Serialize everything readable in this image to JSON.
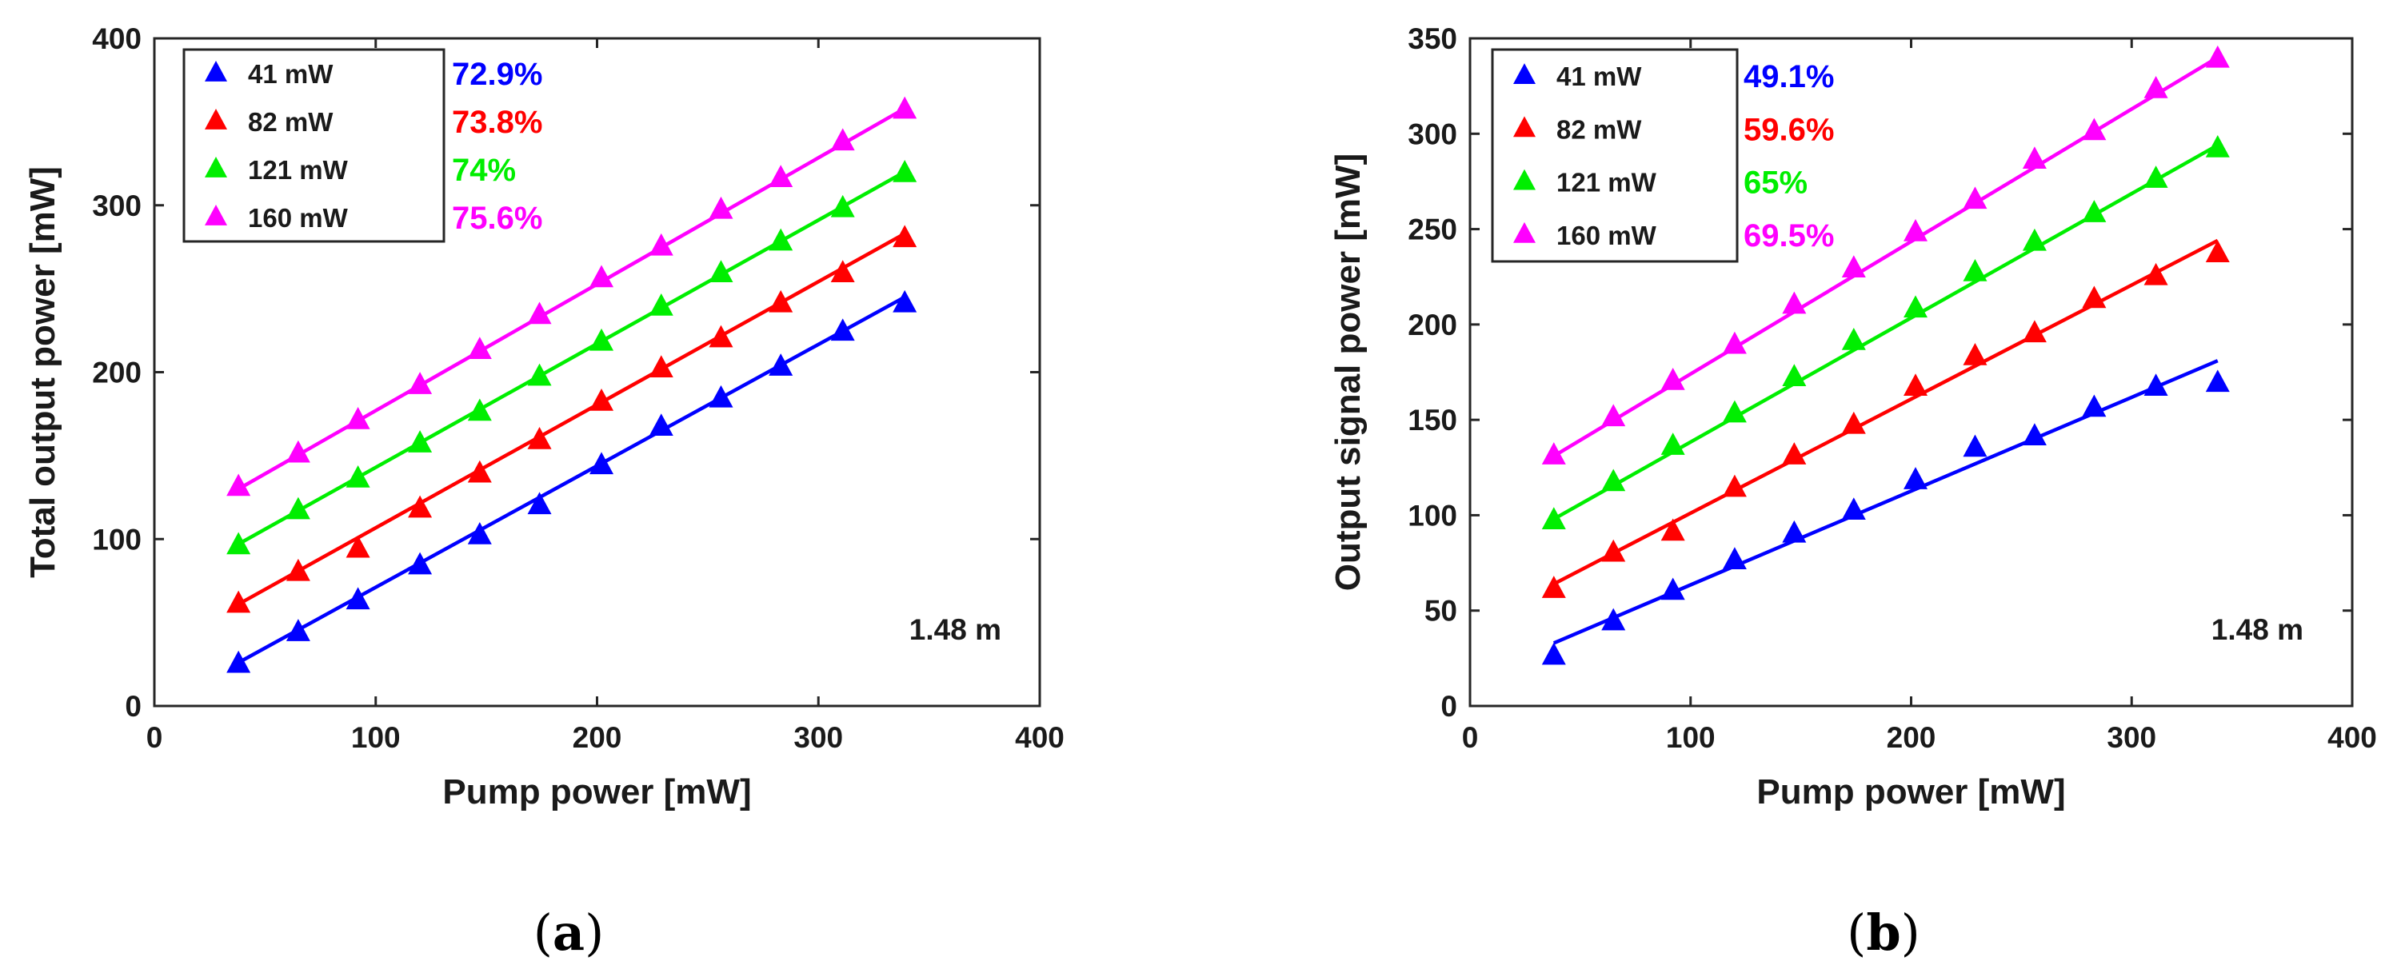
{
  "chart_data": [
    {
      "type": "scatter",
      "panel": "(a)",
      "panel_letter": "a",
      "xlabel": "Pump power [mW]",
      "ylabel": "Total output power [mW]",
      "xlim": [
        0,
        400
      ],
      "ylim": [
        0,
        400
      ],
      "xticks": [
        0,
        100,
        200,
        300,
        400
      ],
      "yticks": [
        0,
        100,
        200,
        300,
        400
      ],
      "annotation": "1.48 m",
      "legend_position": "top-left",
      "series": [
        {
          "name": "41 mW",
          "efficiency": "72.9%",
          "color": "#0000ff",
          "x": [
            38,
            65,
            92,
            120,
            147,
            174,
            202,
            229,
            256,
            283,
            311,
            339
          ],
          "y": [
            26,
            45,
            64,
            85,
            103,
            121,
            145,
            168,
            185,
            204,
            225,
            242
          ],
          "fit": [
            [
              38,
              26
            ],
            [
              339,
              245
            ]
          ]
        },
        {
          "name": "82 mW",
          "efficiency": "73.8%",
          "color": "#ff0000",
          "x": [
            38,
            65,
            92,
            120,
            147,
            174,
            202,
            229,
            256,
            283,
            311,
            339
          ],
          "y": [
            62,
            81,
            95,
            119,
            140,
            160,
            183,
            203,
            221,
            242,
            260,
            281
          ],
          "fit": [
            [
              38,
              61
            ],
            [
              339,
              283
            ]
          ]
        },
        {
          "name": "121 mW",
          "efficiency": "74%",
          "color": "#00ee00",
          "x": [
            38,
            65,
            92,
            120,
            147,
            174,
            202,
            229,
            256,
            283,
            311,
            339
          ],
          "y": [
            97,
            118,
            137,
            158,
            177,
            198,
            219,
            240,
            260,
            279,
            299,
            320
          ],
          "fit": [
            [
              38,
              97
            ],
            [
              339,
              320
            ]
          ]
        },
        {
          "name": "160 mW",
          "efficiency": "75.6%",
          "color": "#ff00ff",
          "x": [
            38,
            65,
            92,
            120,
            147,
            174,
            202,
            229,
            256,
            283,
            311,
            339
          ],
          "y": [
            132,
            152,
            172,
            193,
            214,
            235,
            257,
            276,
            298,
            317,
            339,
            358
          ],
          "fit": [
            [
              38,
              130
            ],
            [
              339,
              358
            ]
          ]
        }
      ]
    },
    {
      "type": "scatter",
      "panel": "(b)",
      "panel_letter": "b",
      "xlabel": "Pump power [mW]",
      "ylabel": "Output signal power [mW]",
      "xlim": [
        0,
        400
      ],
      "ylim": [
        0,
        350
      ],
      "xticks": [
        0,
        100,
        200,
        300,
        400
      ],
      "yticks": [
        0,
        50,
        100,
        150,
        200,
        250,
        300,
        350
      ],
      "annotation": "1.48 m",
      "legend_position": "top-left",
      "series": [
        {
          "name": "41 mW",
          "efficiency": "49.1%",
          "color": "#0000ff",
          "x": [
            38,
            65,
            92,
            120,
            147,
            174,
            202,
            229,
            256,
            283,
            311,
            339
          ],
          "y": [
            27,
            45,
            61,
            77,
            91,
            103,
            119,
            136,
            142,
            157,
            168,
            170
          ],
          "fit": [
            [
              38,
              33
            ],
            [
              339,
              181
            ]
          ]
        },
        {
          "name": "82 mW",
          "efficiency": "59.6%",
          "color": "#ff0000",
          "x": [
            38,
            65,
            92,
            120,
            147,
            174,
            202,
            229,
            256,
            283,
            311,
            339
          ],
          "y": [
            62,
            81,
            92,
            115,
            132,
            148,
            168,
            184,
            196,
            214,
            226,
            238
          ],
          "fit": [
            [
              38,
              64
            ],
            [
              339,
              244
            ]
          ]
        },
        {
          "name": "121 mW",
          "efficiency": "65%",
          "color": "#00ee00",
          "x": [
            38,
            65,
            92,
            120,
            147,
            174,
            202,
            229,
            256,
            283,
            311,
            339
          ],
          "y": [
            98,
            118,
            137,
            154,
            173,
            192,
            209,
            228,
            244,
            259,
            277,
            293
          ],
          "fit": [
            [
              38,
              98
            ],
            [
              339,
              294
            ]
          ]
        },
        {
          "name": "160 mW",
          "efficiency": "69.5%",
          "color": "#ff00ff",
          "x": [
            38,
            65,
            92,
            120,
            147,
            174,
            202,
            229,
            256,
            283,
            311,
            339
          ],
          "y": [
            132,
            152,
            171,
            190,
            211,
            230,
            249,
            266,
            287,
            302,
            324,
            340
          ],
          "fit": [
            [
              38,
              131
            ],
            [
              339,
              340
            ]
          ]
        }
      ]
    }
  ]
}
